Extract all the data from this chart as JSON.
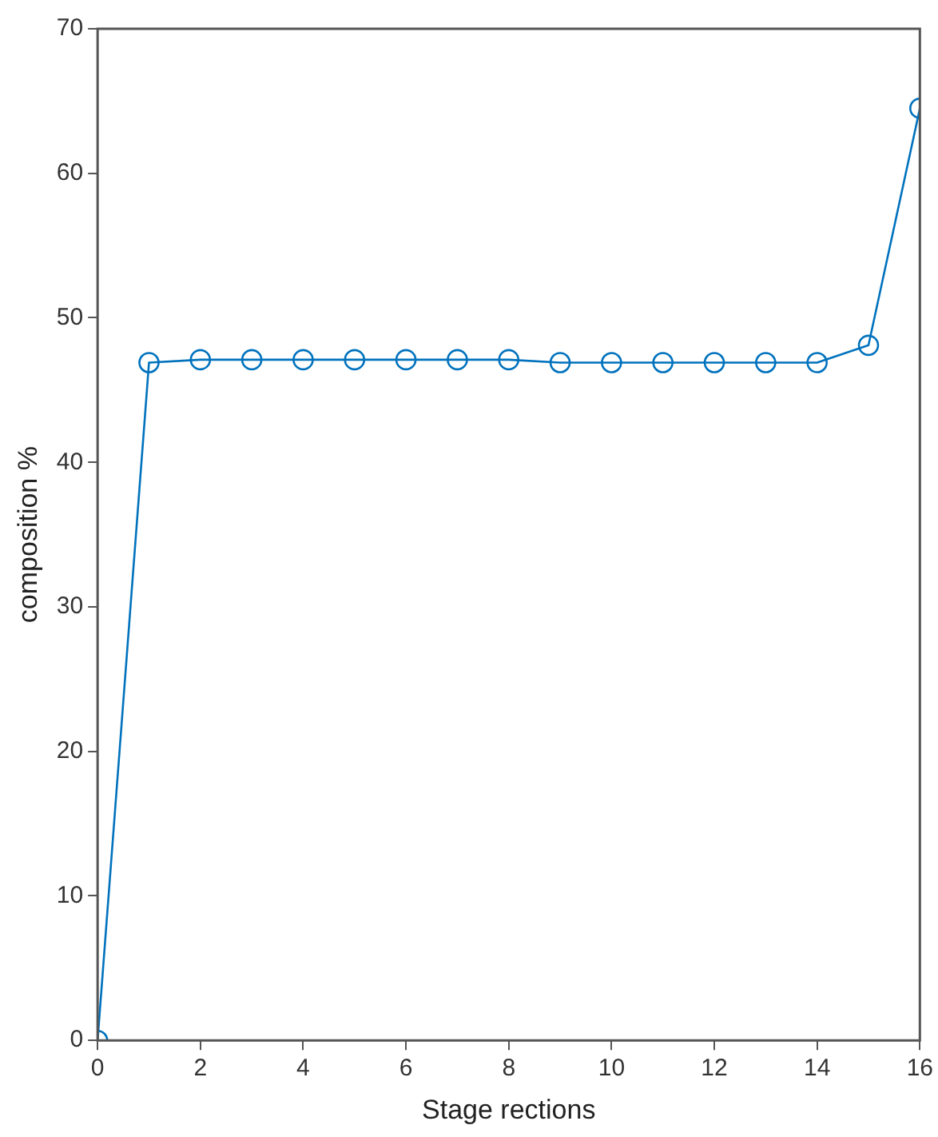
{
  "chart_data": {
    "type": "line",
    "xlabel": "Stage rections",
    "ylabel": "composition %",
    "x": [
      0,
      1,
      2,
      3,
      4,
      5,
      6,
      7,
      8,
      9,
      10,
      11,
      12,
      13,
      14,
      15,
      16
    ],
    "series": [
      {
        "color": "#0072bd",
        "values": [
          0,
          46.9,
          47.1,
          47.1,
          47.1,
          47.1,
          47.1,
          47.1,
          47.1,
          46.9,
          46.9,
          46.9,
          46.9,
          46.9,
          46.9,
          48.1,
          64.5
        ]
      }
    ],
    "xlim": [
      0,
      16
    ],
    "xticks": [
      0,
      2,
      4,
      6,
      8,
      10,
      12,
      14,
      16
    ],
    "ylim": [
      0,
      70
    ],
    "yticks": [
      0,
      10,
      20,
      30,
      40,
      50,
      60,
      70
    ],
    "grid": false,
    "legend": false,
    "marker": "circle",
    "line_style": "solid"
  }
}
